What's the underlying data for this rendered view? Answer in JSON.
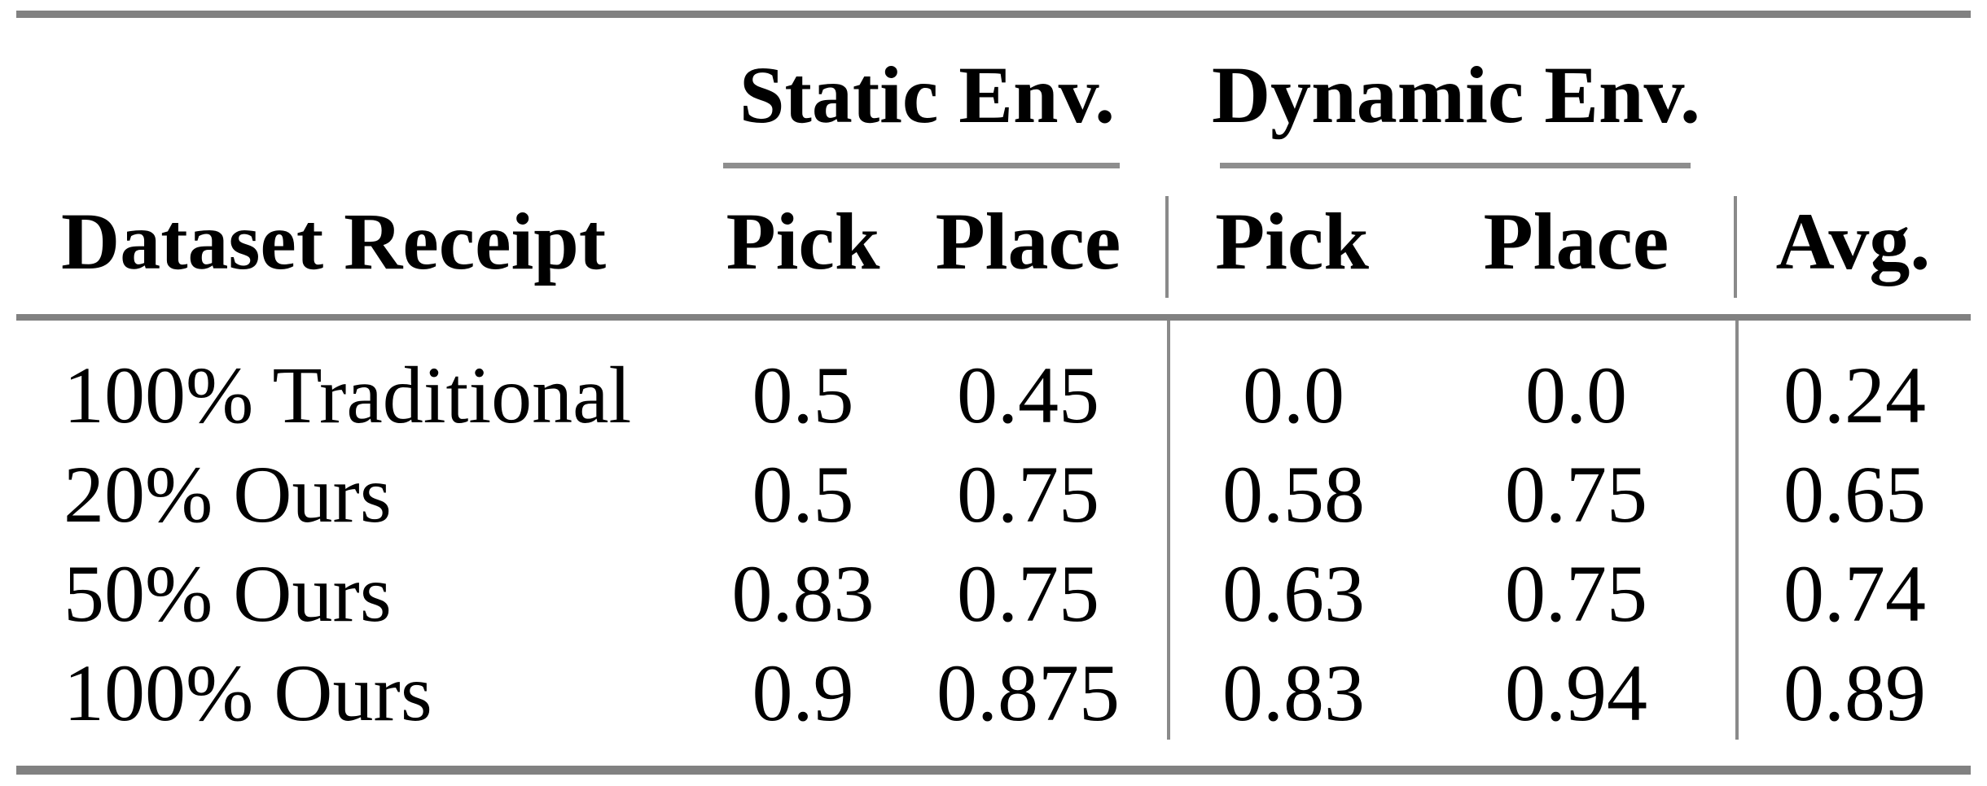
{
  "table": {
    "group_headers": [
      {
        "label": "Static Env."
      },
      {
        "label": "Dynamic Env."
      }
    ],
    "columns": {
      "row_header": "Dataset Receipt",
      "static_pick": "Pick",
      "static_place": "Place",
      "dynamic_pick": "Pick",
      "dynamic_place": "Place",
      "avg": "Avg."
    },
    "rows": [
      {
        "label": "100% Traditional",
        "values": [
          "0.5",
          "0.45",
          "0.0",
          "0.0",
          "0.24"
        ]
      },
      {
        "label": "20% Ours",
        "values": [
          "0.5",
          "0.75",
          "0.58",
          "0.75",
          "0.65"
        ]
      },
      {
        "label": "50% Ours",
        "values": [
          "0.83",
          "0.75",
          "0.63",
          "0.75",
          "0.74"
        ]
      },
      {
        "label": "100% Ours",
        "values": [
          "0.9",
          "0.875",
          "0.83",
          "0.94",
          "0.89"
        ]
      }
    ]
  },
  "colors": {
    "background": "#ffffff",
    "text": "#000000",
    "heavy_rule": "#818181",
    "cmidrule": "#8e8e8e",
    "vertical_rule": "#8a8a8a"
  }
}
